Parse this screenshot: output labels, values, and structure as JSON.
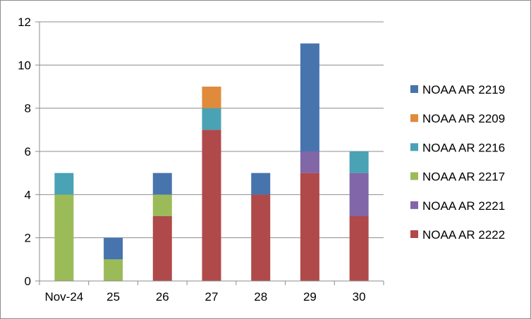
{
  "chart_data": {
    "type": "bar",
    "stacked": true,
    "title": "",
    "xlabel": "",
    "ylabel": "",
    "categories": [
      "Nov-24",
      "25",
      "26",
      "27",
      "28",
      "29",
      "30"
    ],
    "ylim": [
      0,
      12
    ],
    "yticks": [
      0,
      2,
      4,
      6,
      8,
      10,
      12
    ],
    "grid": true,
    "legend_position": "right",
    "series": [
      {
        "name": "NOAA AR 2222",
        "color": "#b0494a",
        "values": [
          0,
          0,
          3,
          7,
          4,
          5,
          3
        ]
      },
      {
        "name": "NOAA AR 2221",
        "color": "#8166a8",
        "values": [
          0,
          0,
          0,
          0,
          0,
          1,
          2
        ]
      },
      {
        "name": "NOAA AR 2217",
        "color": "#9bbb59",
        "values": [
          4,
          1,
          1,
          0,
          0,
          0,
          0
        ]
      },
      {
        "name": "NOAA AR 2216",
        "color": "#4aa2b5",
        "values": [
          1,
          0,
          0,
          1,
          0,
          0,
          1
        ]
      },
      {
        "name": "NOAA AR 2209",
        "color": "#e08a3c",
        "values": [
          0,
          0,
          0,
          1,
          0,
          0,
          0
        ]
      },
      {
        "name": "NOAA AR 2219",
        "color": "#4874ae",
        "values": [
          0,
          1,
          1,
          0,
          1,
          5,
          0
        ]
      }
    ]
  }
}
